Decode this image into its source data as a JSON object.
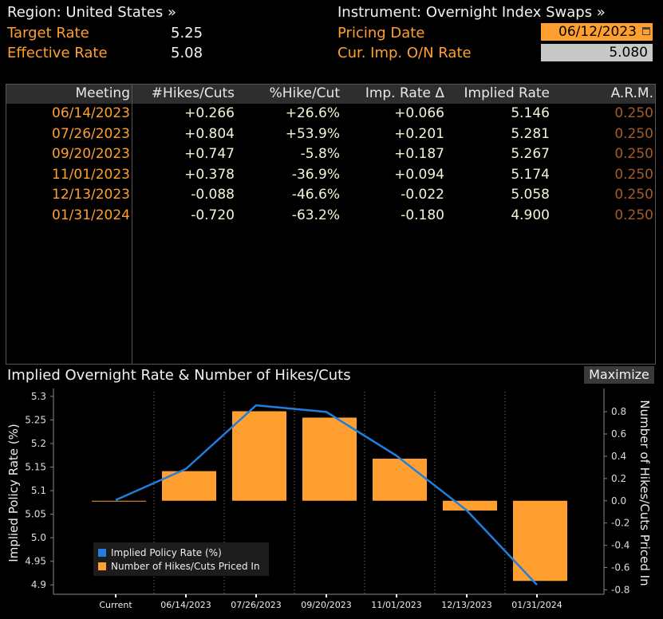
{
  "header": {
    "region_label": "Region: United States »",
    "target_label": "Target Rate",
    "target_value": "5.25",
    "effective_label": "Effective Rate",
    "effective_value": "5.08",
    "instrument_label": "Instrument: Overnight Index Swaps »",
    "pricing_label": "Pricing Date",
    "pricing_value": "06/12/2023",
    "onrate_label": "Cur. Imp. O/N Rate",
    "onrate_value": "5.080"
  },
  "table": {
    "columns": [
      "Meeting",
      "#Hikes/Cuts",
      "%Hike/Cut",
      "Imp. Rate Δ",
      "Implied Rate",
      "A.R.M."
    ],
    "rows": [
      [
        "06/14/2023",
        "+0.266",
        "+26.6%",
        "+0.066",
        "5.146",
        "0.250"
      ],
      [
        "07/26/2023",
        "+0.804",
        "+53.9%",
        "+0.201",
        "5.281",
        "0.250"
      ],
      [
        "09/20/2023",
        "+0.747",
        "-5.8%",
        "+0.187",
        "5.267",
        "0.250"
      ],
      [
        "11/01/2023",
        "+0.378",
        "-36.9%",
        "+0.094",
        "5.174",
        "0.250"
      ],
      [
        "12/13/2023",
        "-0.088",
        "-46.6%",
        "-0.022",
        "5.058",
        "0.250"
      ],
      [
        "01/31/2024",
        "-0.720",
        "-63.2%",
        "-0.180",
        "4.900",
        "0.250"
      ]
    ]
  },
  "chart_title": "Implied Overnight Rate & Number of Hikes/Cuts",
  "maximize_label": "Maximize",
  "colors": {
    "orange": "#ff9f2f",
    "blue": "#1f7fe0",
    "arm": "#a55b28"
  },
  "chart_data": {
    "type": "bar",
    "categories": [
      "Current",
      "06/14/2023",
      "07/26/2023",
      "09/20/2023",
      "11/01/2023",
      "12/13/2023",
      "01/31/2024"
    ],
    "ylabel": "Implied Policy Rate (%)",
    "y2label": "Number of Hikes/Cuts Priced In",
    "ylim": [
      4.88,
      5.31
    ],
    "y2lim": [
      -0.84,
      0.98
    ],
    "yticks": [
      "5.3",
      "5.25",
      "5.2",
      "5.15",
      "5.1",
      "5.05",
      "5.0",
      "4.95",
      "4.9"
    ],
    "ytick_values": [
      5.3,
      5.25,
      5.2,
      5.15,
      5.1,
      5.05,
      5.0,
      4.95,
      4.9
    ],
    "y2ticks": [
      "0.8",
      "0.6",
      "0.4",
      "0.2",
      "0.0",
      "-0.2",
      "-0.4",
      "-0.6",
      "-0.8"
    ],
    "y2tick_values": [
      0.8,
      0.6,
      0.4,
      0.2,
      0.0,
      -0.2,
      -0.4,
      -0.6,
      -0.8
    ],
    "series": [
      {
        "name": "Implied Policy Rate (%)",
        "kind": "line",
        "axis": "left",
        "values": [
          5.08,
          5.146,
          5.281,
          5.267,
          5.174,
          5.058,
          4.9
        ]
      },
      {
        "name": "Number of Hikes/Cuts Priced In",
        "kind": "bar",
        "axis": "right",
        "values": [
          0,
          0.266,
          0.804,
          0.747,
          0.378,
          -0.088,
          -0.72
        ]
      }
    ],
    "legend_position": "bottom-left"
  }
}
